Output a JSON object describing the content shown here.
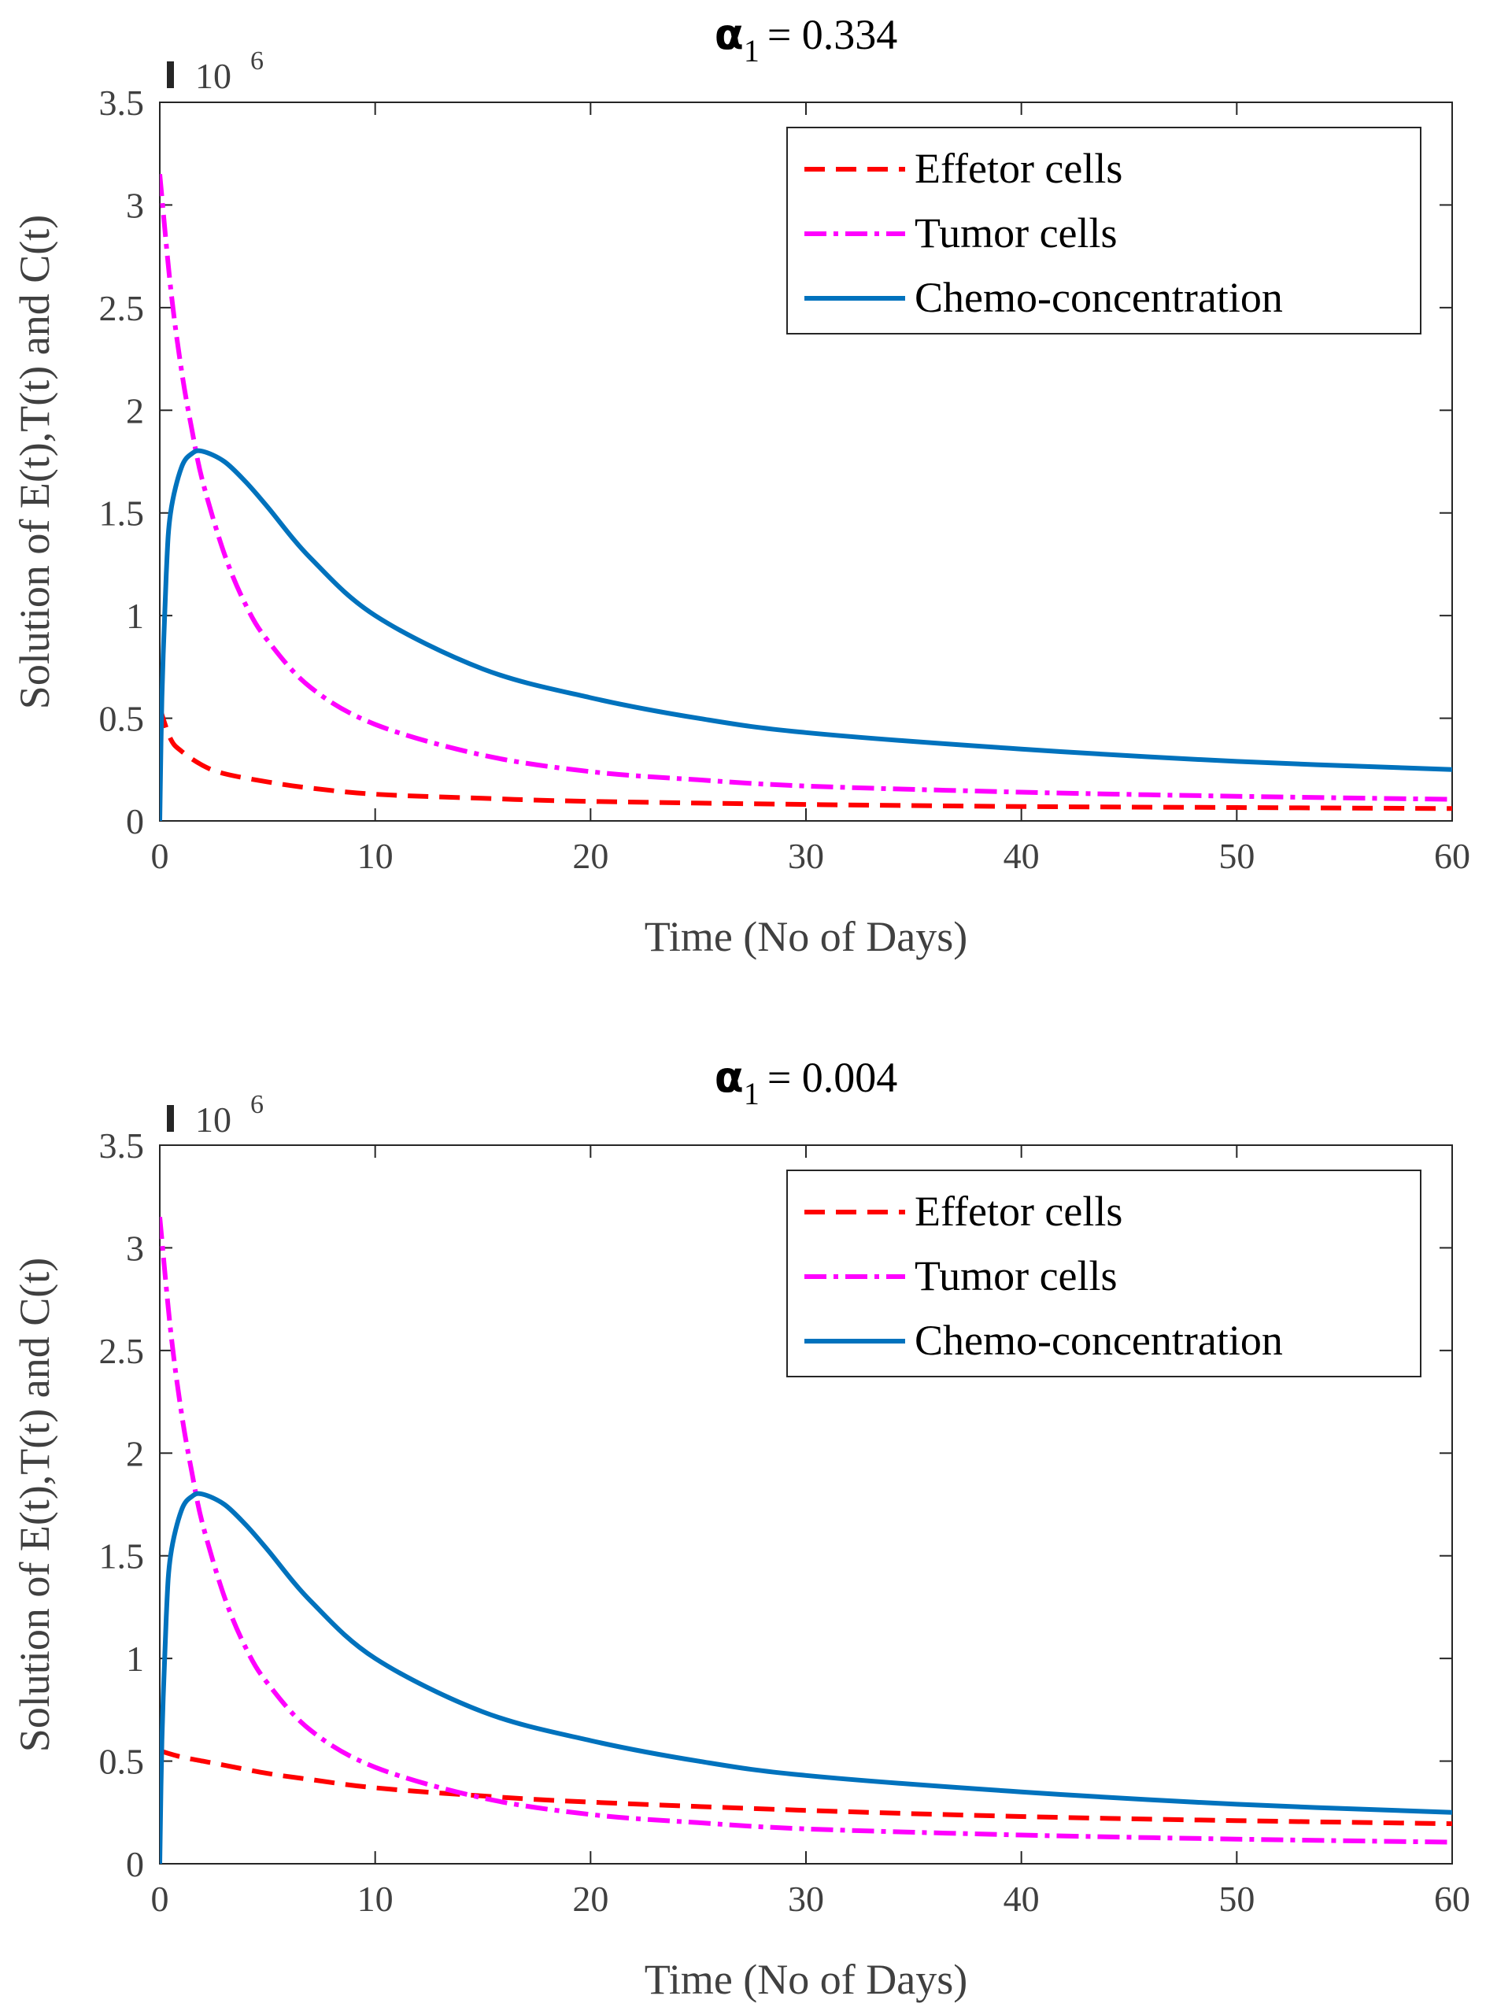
{
  "colors": {
    "effector": "#ff0000",
    "tumor": "#ff00ff",
    "chemo": "#0072bd",
    "axis": "#262626",
    "text": "#404040"
  },
  "chart_data": [
    {
      "type": "line",
      "title_symbol": "α",
      "title_subscript": "1",
      "title_value": "= 0.334",
      "xlabel": "Time (No of Days)",
      "ylabel": "Solution of E(t),T(t) and C(t)",
      "y_exponent_label": "10",
      "y_exponent": "6",
      "xlim": [
        0,
        60
      ],
      "ylim": [
        0,
        3.5
      ],
      "xticks": [
        "0",
        "10",
        "20",
        "30",
        "40",
        "50",
        "60"
      ],
      "yticks": [
        "0",
        "0.5",
        "1",
        "1.5",
        "2",
        "2.5",
        "3",
        "3.5"
      ],
      "grid": false,
      "legend_position": "top-right",
      "series": [
        {
          "name": "Effetor cells",
          "style": "dashed",
          "x": [
            0,
            0.5,
            1,
            2,
            3,
            5,
            7,
            10,
            15,
            20,
            30,
            40,
            50,
            60
          ],
          "y": [
            0.55,
            0.4,
            0.34,
            0.27,
            0.23,
            0.19,
            0.16,
            0.13,
            0.11,
            0.095,
            0.08,
            0.07,
            0.065,
            0.06
          ]
        },
        {
          "name": "Tumor cells",
          "style": "dashdot",
          "x": [
            0,
            0.5,
            1,
            1.5,
            2,
            3,
            4,
            5,
            7,
            10,
            15,
            20,
            25,
            30,
            40,
            50,
            60
          ],
          "y": [
            3.15,
            2.6,
            2.2,
            1.9,
            1.65,
            1.3,
            1.05,
            0.88,
            0.65,
            0.47,
            0.32,
            0.24,
            0.2,
            0.17,
            0.14,
            0.12,
            0.105
          ]
        },
        {
          "name": "Chemo-concentration",
          "style": "solid",
          "x": [
            0,
            0.1,
            0.3,
            0.5,
            1,
            1.5,
            2,
            3,
            4,
            5,
            7,
            10,
            15,
            20,
            25,
            30,
            40,
            50,
            60
          ],
          "y": [
            0,
            0.6,
            1.2,
            1.5,
            1.72,
            1.79,
            1.8,
            1.75,
            1.65,
            1.53,
            1.28,
            1.0,
            0.74,
            0.6,
            0.5,
            0.43,
            0.35,
            0.29,
            0.25
          ]
        }
      ]
    },
    {
      "type": "line",
      "title_symbol": "α",
      "title_subscript": "1",
      "title_value": "= 0.004",
      "xlabel": "Time (No of Days)",
      "ylabel": "Solution of E(t),T(t) and C(t)",
      "y_exponent_label": "10",
      "y_exponent": "6",
      "xlim": [
        0,
        60
      ],
      "ylim": [
        0,
        3.5
      ],
      "xticks": [
        "0",
        "10",
        "20",
        "30",
        "40",
        "50",
        "60"
      ],
      "yticks": [
        "0",
        "0.5",
        "1",
        "1.5",
        "2",
        "2.5",
        "3",
        "3.5"
      ],
      "grid": false,
      "legend_position": "top-right",
      "series": [
        {
          "name": "Effetor cells",
          "style": "dashed",
          "x": [
            0,
            1,
            2,
            3,
            5,
            7,
            10,
            15,
            20,
            30,
            40,
            50,
            60
          ],
          "y": [
            0.55,
            0.52,
            0.5,
            0.48,
            0.44,
            0.41,
            0.37,
            0.33,
            0.3,
            0.26,
            0.23,
            0.21,
            0.195
          ]
        },
        {
          "name": "Tumor cells",
          "style": "dashdot",
          "x": [
            0,
            0.5,
            1,
            1.5,
            2,
            3,
            4,
            5,
            7,
            10,
            15,
            20,
            25,
            30,
            40,
            50,
            60
          ],
          "y": [
            3.15,
            2.6,
            2.2,
            1.9,
            1.65,
            1.3,
            1.05,
            0.88,
            0.65,
            0.47,
            0.32,
            0.24,
            0.2,
            0.17,
            0.14,
            0.12,
            0.105
          ]
        },
        {
          "name": "Chemo-concentration",
          "style": "solid",
          "x": [
            0,
            0.1,
            0.3,
            0.5,
            1,
            1.5,
            2,
            3,
            4,
            5,
            7,
            10,
            15,
            20,
            25,
            30,
            40,
            50,
            60
          ],
          "y": [
            0,
            0.6,
            1.2,
            1.5,
            1.72,
            1.79,
            1.8,
            1.75,
            1.65,
            1.53,
            1.28,
            1.0,
            0.74,
            0.6,
            0.5,
            0.43,
            0.35,
            0.29,
            0.25
          ]
        }
      ]
    }
  ]
}
